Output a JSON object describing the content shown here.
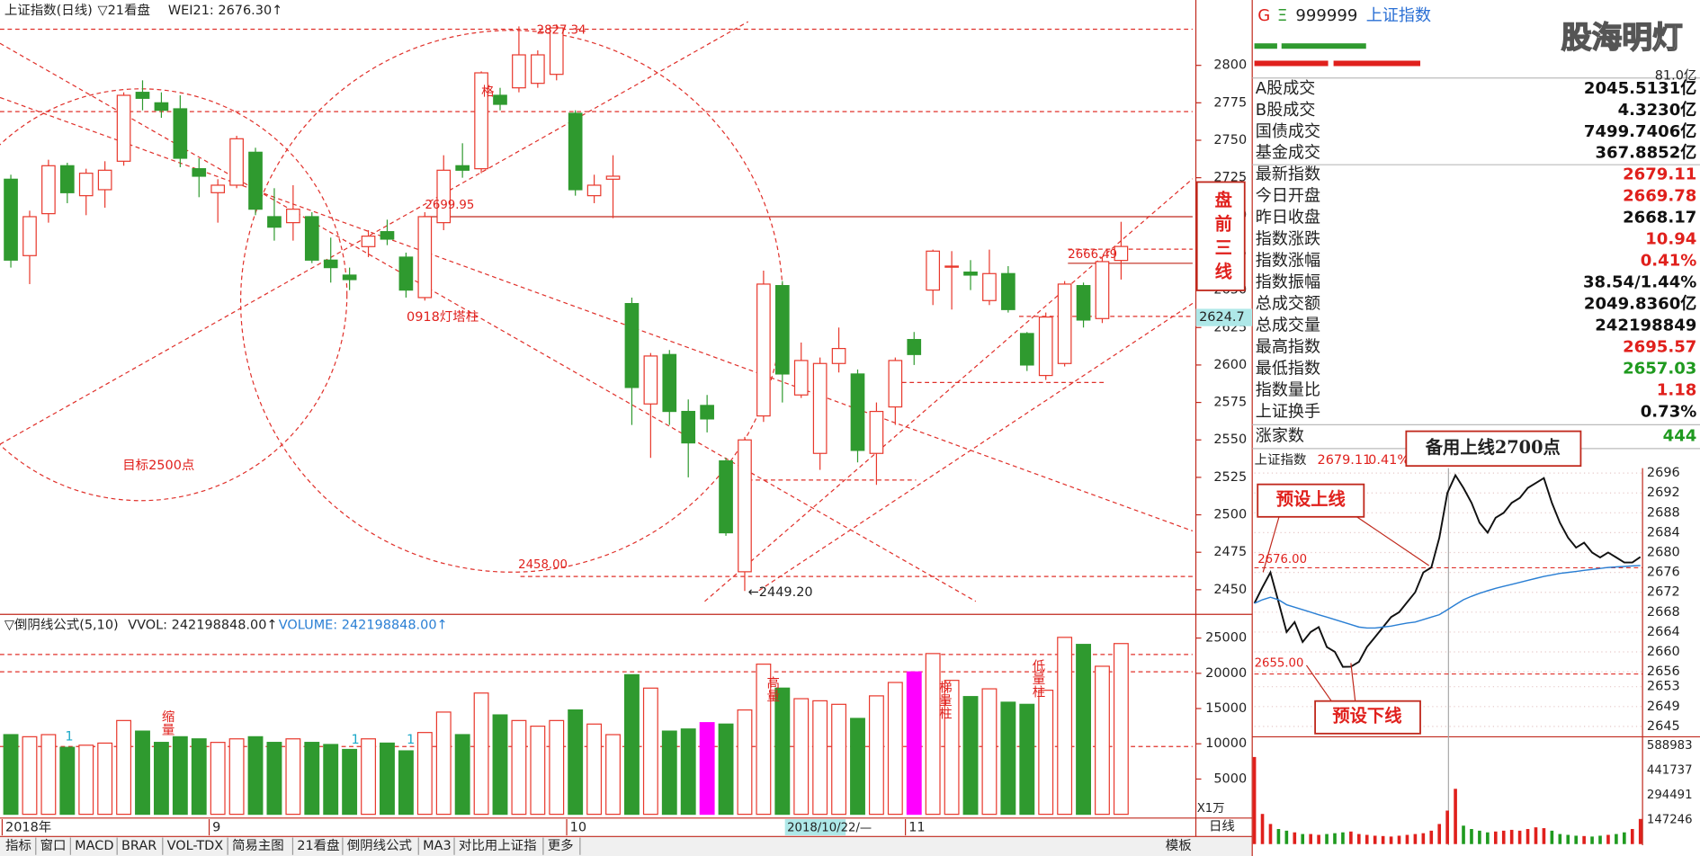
{
  "main_header": {
    "title": "上证指数(日线)",
    "view": "▽21看盘",
    "indicator": "WEI21: 2676.30↑"
  },
  "volume_header": {
    "title": "▽倒阴线公式(5,10)",
    "vvol": "VVOL: 242198848.00↑",
    "volume": "VOLUME: 242198848.00↑"
  },
  "chart_data": [
    {
      "type": "candlestick",
      "up_color": "#e8382c",
      "down_color": "#2f9a2f",
      "grid": false,
      "xlim": [
        -0.576,
        62.8
      ],
      "ylim": [
        2435,
        2840
      ],
      "yticks": [
        2800,
        2775,
        2750,
        2725,
        2700,
        2675,
        2650,
        2625,
        2600,
        2575,
        2550,
        2525,
        2500,
        2475,
        2450
      ],
      "xticks": [
        {
          "value": 0,
          "label": "2018年"
        },
        {
          "value": 11,
          "label": "9"
        },
        {
          "value": 30,
          "label": "10"
        },
        {
          "value": 48,
          "label": "11"
        }
      ],
      "series": [
        {
          "open": [
            2724,
            2673,
            2701,
            2733,
            2713,
            2717,
            2736,
            2782,
            2775,
            2771,
            2731,
            2715,
            2720,
            2742,
            2699,
            2695,
            2699,
            2670,
            2660,
            2679,
            2689,
            2672,
            2645,
            2695,
            2733,
            2731,
            2780,
            2785,
            2788,
            2794,
            2768,
            2713,
            2724,
            2641,
            2574,
            2607,
            2569,
            2573,
            2536,
            2462,
            2566,
            2653,
            2580,
            2541,
            2601,
            2594,
            2541,
            2572,
            2617,
            2650,
            2666,
            2662,
            2643,
            2661,
            2621,
            2593,
            2601,
            2653,
            2631,
            2669.78
          ],
          "close": [
            2670,
            2699,
            2733,
            2715,
            2728,
            2730,
            2780,
            2778,
            2770,
            2738,
            2726,
            2720,
            2751,
            2704,
            2692,
            2704,
            2670,
            2665,
            2657,
            2686,
            2684,
            2650,
            2699,
            2730,
            2730,
            2795,
            2774,
            2807,
            2807,
            2825,
            2717,
            2720,
            2726,
            2585,
            2606,
            2569,
            2548,
            2564,
            2488,
            2550,
            2654,
            2594,
            2603,
            2601,
            2611,
            2543,
            2569,
            2603,
            2607,
            2676,
            2666,
            2660,
            2661,
            2637,
            2600,
            2632,
            2654,
            2630,
            2669,
            2679.11
          ],
          "high": [
            2727,
            2703,
            2737,
            2735,
            2731,
            2736,
            2782,
            2790,
            2782,
            2780,
            2738,
            2724,
            2753,
            2745,
            2718,
            2720,
            2702,
            2685,
            2665,
            2690,
            2697,
            2675,
            2702,
            2740,
            2748,
            2796,
            2785,
            2826,
            2810,
            2827.34,
            2770,
            2727,
            2740,
            2645,
            2608,
            2610,
            2577,
            2580,
            2538,
            2552,
            2663,
            2656,
            2615,
            2605,
            2625,
            2597,
            2575,
            2605,
            2622,
            2677,
            2676,
            2670,
            2677,
            2666,
            2622,
            2635,
            2656,
            2655,
            2672,
            2695.57
          ],
          "low": [
            2665,
            2654,
            2695,
            2708,
            2700,
            2705,
            2733,
            2770,
            2765,
            2732,
            2712,
            2695,
            2718,
            2700,
            2683,
            2683,
            2668,
            2655,
            2650,
            2672,
            2680,
            2645,
            2643,
            2690,
            2725,
            2728,
            2770,
            2782,
            2785,
            2790,
            2713,
            2708,
            2698,
            2560,
            2538,
            2560,
            2525,
            2555,
            2486,
            2449.2,
            2562,
            2575,
            2578,
            2530,
            2595,
            2535,
            2520,
            2560,
            2600,
            2640,
            2637,
            2650,
            2640,
            2635,
            2596,
            2590,
            2599,
            2625,
            2628,
            2657.03
          ]
        }
      ],
      "annotations": [
        "2827.34",
        "2699.95",
        "0918灯塔柱",
        "目标2500点",
        "2666.49",
        "2458.00",
        "←2449.20",
        "格",
        "盘前三线"
      ],
      "price_label": "2624.7",
      "cursor_label": "2018/10/22/—"
    },
    {
      "type": "bar",
      "up_color": "#e8382c",
      "down_color": "#2f9a2f",
      "highlight_color": "#ff00ff",
      "highlights": [
        37,
        48
      ],
      "ylim": [
        0,
        27900
      ],
      "yticks": [
        25000,
        20000,
        15000,
        10000,
        5000
      ],
      "values": [
        11300,
        11000,
        11300,
        9500,
        9800,
        10100,
        13300,
        11800,
        10200,
        11000,
        10700,
        10200,
        10700,
        11000,
        10200,
        10700,
        10200,
        9900,
        9200,
        10700,
        10100,
        9000,
        11600,
        14500,
        11300,
        17200,
        14100,
        13300,
        12500,
        13300,
        14800,
        12800,
        11300,
        19800,
        17900,
        11800,
        12100,
        13000,
        12800,
        14800,
        21300,
        17900,
        16400,
        16100,
        15600,
        13600,
        16800,
        18700,
        20200,
        22800,
        19000,
        16700,
        17800,
        15900,
        15600,
        17600,
        25100,
        24100,
        21000,
        24220
      ],
      "unit": "X1万",
      "annotations": [
        "缩量",
        "1",
        "1",
        "1",
        "高量",
        "梯量柱",
        "低量柱"
      ]
    },
    {
      "type": "line",
      "ylim": [
        2644,
        2697
      ],
      "grid": true,
      "yticks": [
        2696,
        2692,
        2688,
        2684,
        2680,
        2676,
        2672,
        2668,
        2664,
        2660,
        2656,
        2653,
        2649,
        2645
      ],
      "series": [
        {
          "color": "#111111",
          "values": [
            2669.78,
            2673,
            2676,
            2670,
            2664,
            2666,
            2662,
            2664,
            2665,
            2661,
            2660,
            2657,
            2657.03,
            2658,
            2661,
            2663,
            2665,
            2667,
            2668,
            2670,
            2672,
            2676,
            2677,
            2683,
            2692,
            2695.57,
            2693,
            2690,
            2686,
            2684,
            2687,
            2688,
            2690,
            2691,
            2693,
            2694,
            2695,
            2690,
            2686,
            2683,
            2681,
            2682,
            2680,
            2679,
            2680,
            2679,
            2678,
            2678,
            2679.11
          ]
        },
        {
          "color": "#2a7fd4",
          "values": [
            2669.78,
            2670.5,
            2671,
            2670.5,
            2669.5,
            2669,
            2668.5,
            2668,
            2667.5,
            2667,
            2666.5,
            2666,
            2665.5,
            2665,
            2664.8,
            2664.8,
            2665,
            2665.2,
            2665.5,
            2665.8,
            2666,
            2666.5,
            2667,
            2667.5,
            2668.5,
            2669.5,
            2670.5,
            2671.2,
            2671.8,
            2672.3,
            2672.8,
            2673.2,
            2673.6,
            2674,
            2674.4,
            2674.8,
            2675.2,
            2675.5,
            2675.8,
            2676,
            2676.2,
            2676.4,
            2676.6,
            2676.8,
            2677,
            2677.1,
            2677.2,
            2677.3,
            2677.4
          ]
        }
      ],
      "annotations": [
        "备用上线2700点",
        "预设上线",
        "预设下线",
        "2676.00",
        "2655.00"
      ]
    },
    {
      "type": "bar",
      "ylim": [
        0,
        627600
      ],
      "yticks": [
        588983,
        441737,
        294491,
        147246
      ],
      "values": [
        520000,
        180000,
        120000,
        90000,
        80000,
        70000,
        60000,
        60000,
        55000,
        60000,
        65000,
        70000,
        75000,
        60000,
        55000,
        50000,
        48000,
        45000,
        50000,
        55000,
        60000,
        65000,
        80000,
        120000,
        200000,
        330000,
        110000,
        90000,
        80000,
        70000,
        75000,
        80000,
        85000,
        80000,
        90000,
        100000,
        95000,
        80000,
        60000,
        55000,
        50000,
        48000,
        45000,
        50000,
        55000,
        60000,
        70000,
        90000,
        150000
      ]
    }
  ],
  "quote": {
    "flag": "G",
    "mark": "Ξ",
    "code": "999999",
    "name": "上证指数",
    "amount": "81.0亿",
    "watermark": "股海明灯",
    "rows": [
      {
        "label": "A股成交",
        "value": "2045.5131亿",
        "color": "#111111"
      },
      {
        "label": "B股成交",
        "value": "4.3230亿",
        "color": "#111111"
      },
      {
        "label": "国债成交",
        "value": "7499.7406亿",
        "color": "#111111"
      },
      {
        "label": "基金成交",
        "value": "367.8852亿",
        "color": "#111111"
      },
      {
        "label": "最新指数",
        "value": "2679.11",
        "color": "#e0201c"
      },
      {
        "label": "今日开盘",
        "value": "2669.78",
        "color": "#e0201c"
      },
      {
        "label": "昨日收盘",
        "value": "2668.17",
        "color": "#111111"
      },
      {
        "label": "指数涨跌",
        "value": "10.94",
        "color": "#e0201c"
      },
      {
        "label": "指数涨幅",
        "value": "0.41%",
        "color": "#e0201c"
      },
      {
        "label": "指数振幅",
        "value": "38.54/1.44%",
        "color": "#111111"
      },
      {
        "label": "总成交额",
        "value": "2049.8360亿",
        "color": "#111111"
      },
      {
        "label": "总成交量",
        "value": "242198849",
        "color": "#111111"
      },
      {
        "label": "最高指数",
        "value": "2695.57",
        "color": "#e0201c"
      },
      {
        "label": "最低指数",
        "value": "2657.03",
        "color": "#1f9a1f"
      },
      {
        "label": "指数量比",
        "value": "1.18",
        "color": "#e0201c"
      },
      {
        "label": "上证换手",
        "value": "0.73%",
        "color": "#111111"
      }
    ],
    "advancers": {
      "label": "涨家数",
      "value": "444",
      "color": "#1f9a1f"
    }
  },
  "intraday_header": {
    "name": "上证指数",
    "price": "2679.11",
    "change": "0.41%"
  },
  "tabs": [
    "指标",
    "窗口",
    "MACD",
    "BRAR",
    "VOL-TDX",
    "简易主图",
    "21看盘",
    "倒阴线公式",
    "MA3",
    "对比用上证指",
    "更多"
  ],
  "active_tab": 7,
  "right_tabs": [
    "模板",
    "日线"
  ]
}
